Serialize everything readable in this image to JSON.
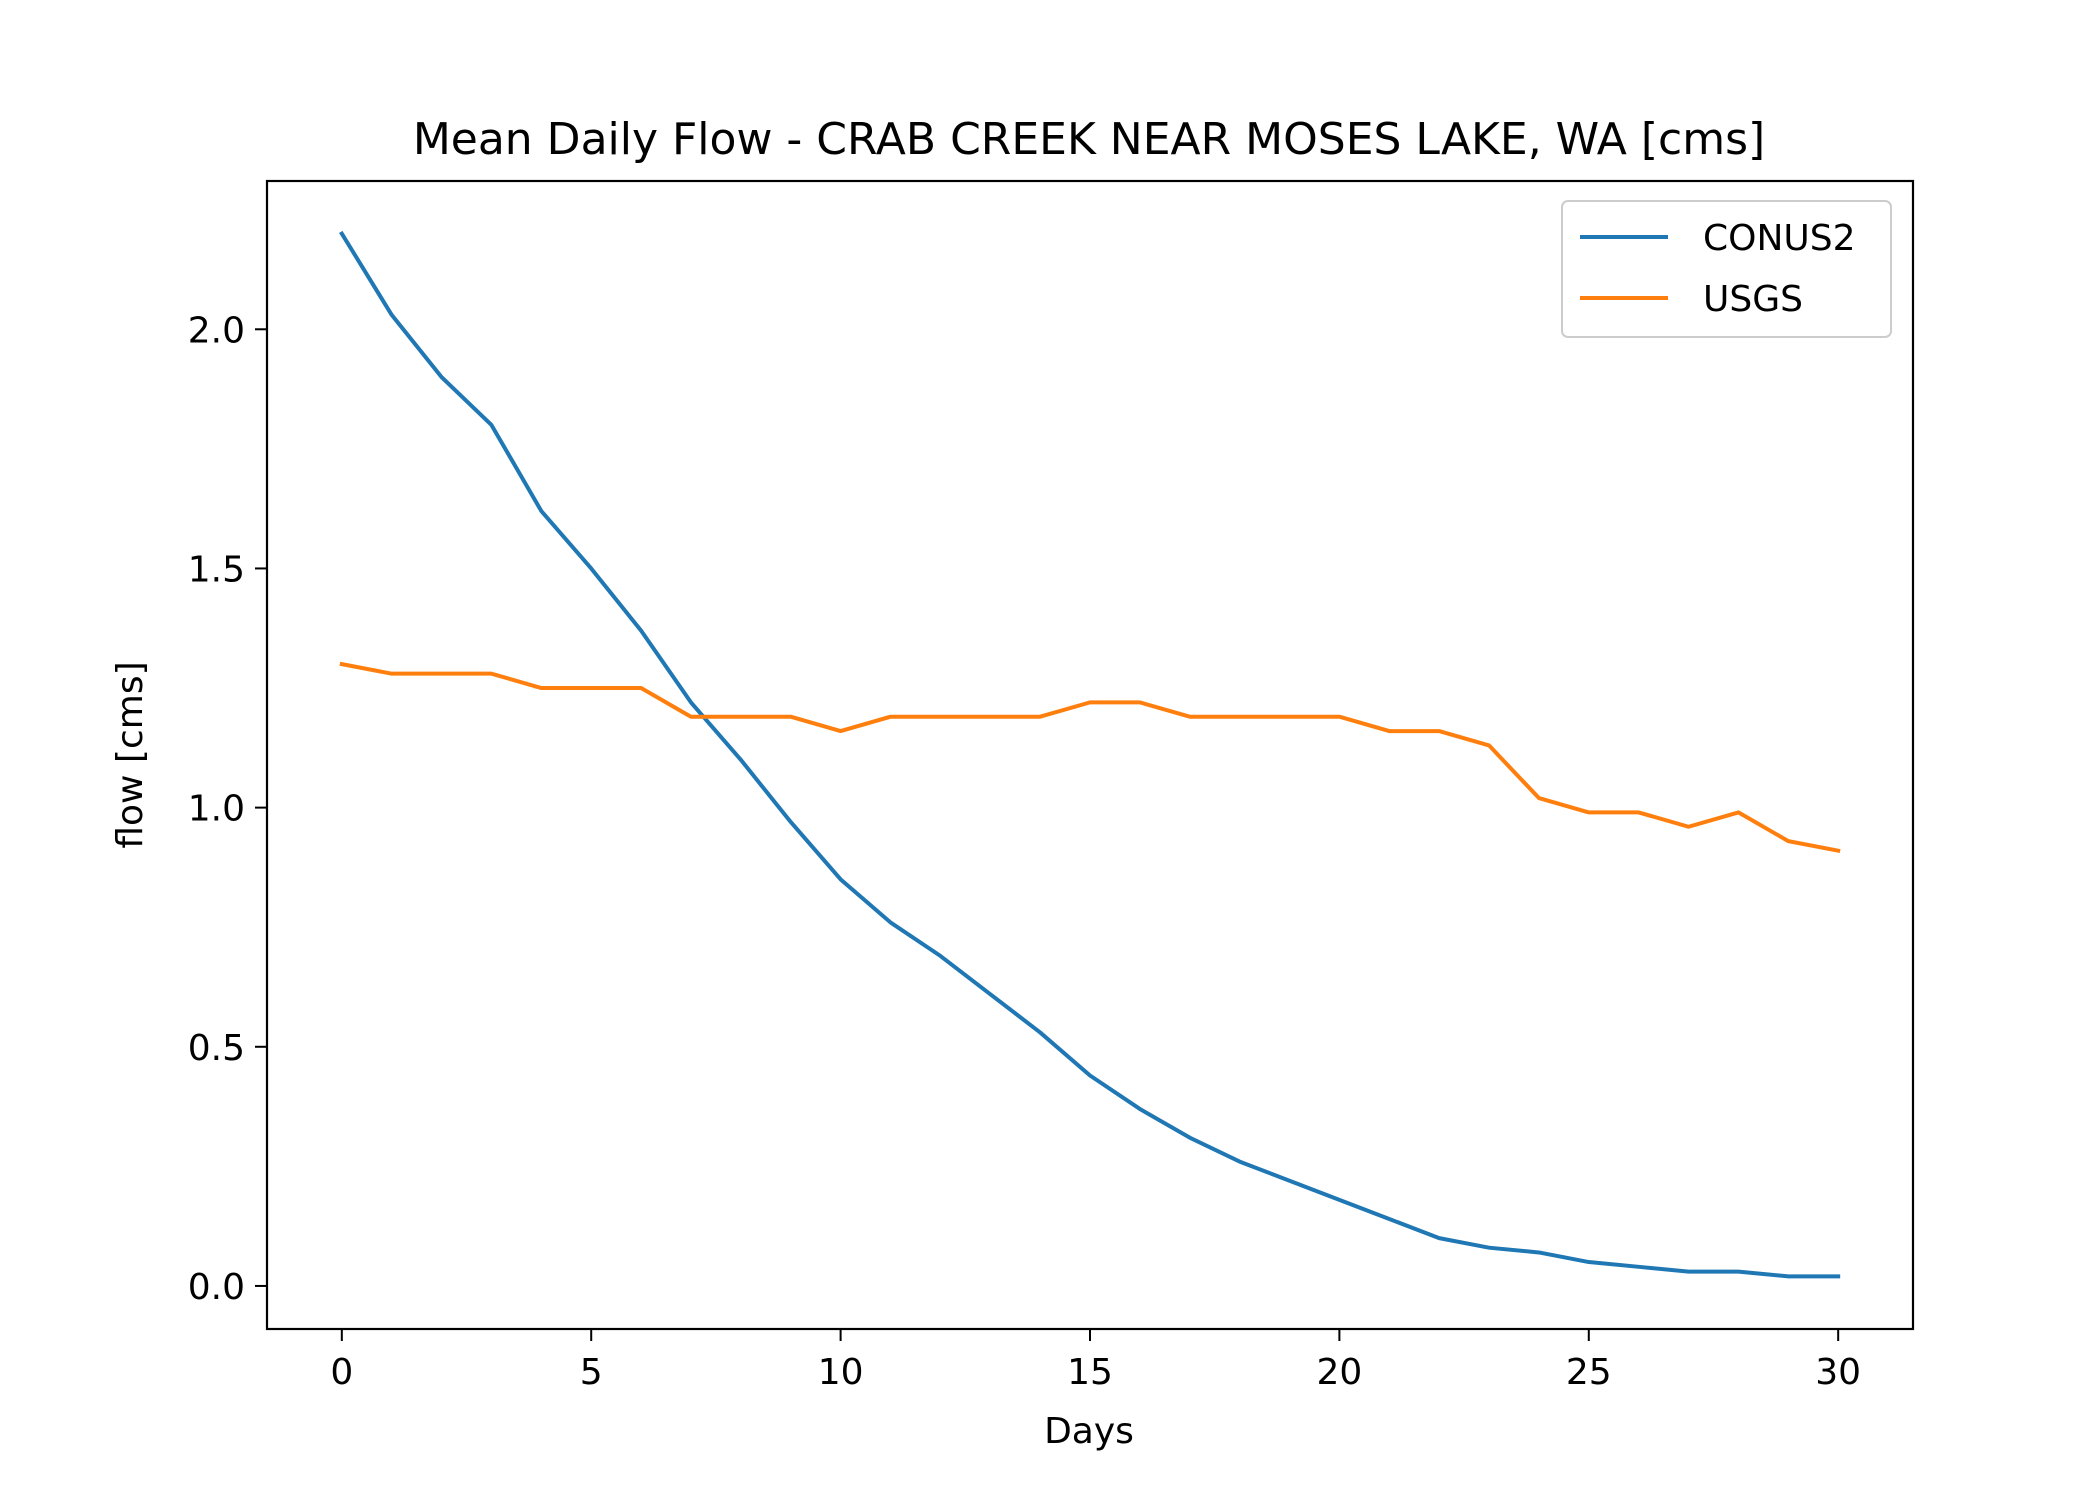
{
  "chart_data": {
    "type": "line",
    "title": "Mean Daily Flow - CRAB CREEK NEAR MOSES LAKE, WA [cms]",
    "xlabel": "Days",
    "ylabel": "flow [cms]",
    "xlim": [
      -1.5,
      31.5
    ],
    "ylim": [
      -0.09,
      2.31
    ],
    "xticks": [
      0,
      5,
      10,
      15,
      20,
      25,
      30
    ],
    "xtick_labels": [
      "0",
      "5",
      "10",
      "15",
      "20",
      "25",
      "30"
    ],
    "yticks": [
      0.0,
      0.5,
      1.0,
      1.5,
      2.0
    ],
    "ytick_labels": [
      "0.0",
      "0.5",
      "1.0",
      "1.5",
      "2.0"
    ],
    "grid": false,
    "legend_position": "top-right",
    "x": [
      0,
      1,
      2,
      3,
      4,
      5,
      6,
      7,
      8,
      9,
      10,
      11,
      12,
      13,
      14,
      15,
      16,
      17,
      18,
      19,
      20,
      21,
      22,
      23,
      24,
      25,
      26,
      27,
      28,
      29,
      30
    ],
    "series": [
      {
        "name": "CONUS2",
        "color": "#1f77b4",
        "values": [
          2.2,
          2.03,
          1.9,
          1.8,
          1.62,
          1.5,
          1.37,
          1.22,
          1.1,
          0.97,
          0.85,
          0.76,
          0.69,
          0.61,
          0.53,
          0.44,
          0.37,
          0.31,
          0.26,
          0.22,
          0.18,
          0.14,
          0.1,
          0.08,
          0.07,
          0.05,
          0.04,
          0.03,
          0.03,
          0.02,
          0.02
        ]
      },
      {
        "name": "USGS",
        "color": "#ff7f0e",
        "values": [
          1.3,
          1.28,
          1.28,
          1.28,
          1.25,
          1.25,
          1.25,
          1.19,
          1.19,
          1.19,
          1.16,
          1.19,
          1.19,
          1.19,
          1.19,
          1.22,
          1.22,
          1.19,
          1.19,
          1.19,
          1.19,
          1.16,
          1.16,
          1.13,
          1.02,
          0.99,
          0.99,
          0.96,
          0.99,
          0.93,
          0.91
        ]
      }
    ]
  }
}
